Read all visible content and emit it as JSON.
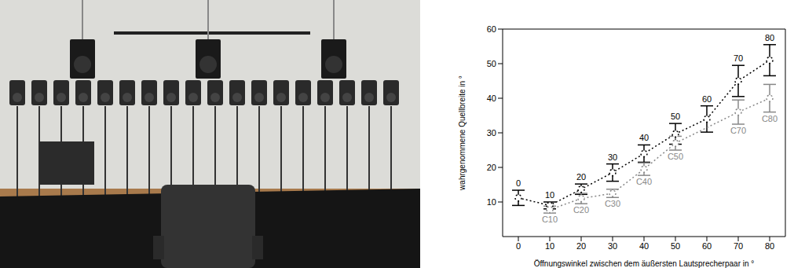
{
  "chart_data": {
    "type": "line",
    "x_label": "Öffnungswinkel zwischen dem äußersten Lautsprecherpaar in °",
    "y_label": "wahrgenommene Quellbreite in °",
    "xlim": [
      -5,
      85
    ],
    "ylim": [
      0,
      60
    ],
    "xticks": [
      0,
      10,
      20,
      30,
      40,
      50,
      60,
      70,
      80
    ],
    "yticks": [
      10,
      20,
      30,
      40,
      50,
      60
    ],
    "series": [
      {
        "color": "#000000",
        "marker": "circle",
        "line_style": "dotted",
        "x": [
          0,
          10,
          20,
          30,
          40,
          50,
          60,
          70,
          80
        ],
        "values": [
          11.2,
          9,
          13.7,
          18.5,
          24,
          29.7,
          34,
          45,
          51
        ],
        "errors": [
          2.2,
          1,
          1.5,
          2.5,
          2.5,
          3,
          3.8,
          4.5,
          4.5
        ],
        "labels": [
          "0",
          "10",
          "20",
          "30",
          "40",
          "50",
          "60",
          "70",
          "80"
        ]
      },
      {
        "color": "#888888",
        "marker": "circle",
        "line_style": "dotted",
        "x": [
          10,
          20,
          30,
          40,
          50,
          70,
          80
        ],
        "values": [
          7.8,
          11,
          12.5,
          19.5,
          27,
          36,
          40
        ],
        "errors": [
          1,
          1.5,
          1.2,
          1.8,
          2,
          3.5,
          4
        ],
        "labels": [
          "C10",
          "C20",
          "C30",
          "C40",
          "C50",
          "C70",
          "C80"
        ]
      }
    ]
  }
}
